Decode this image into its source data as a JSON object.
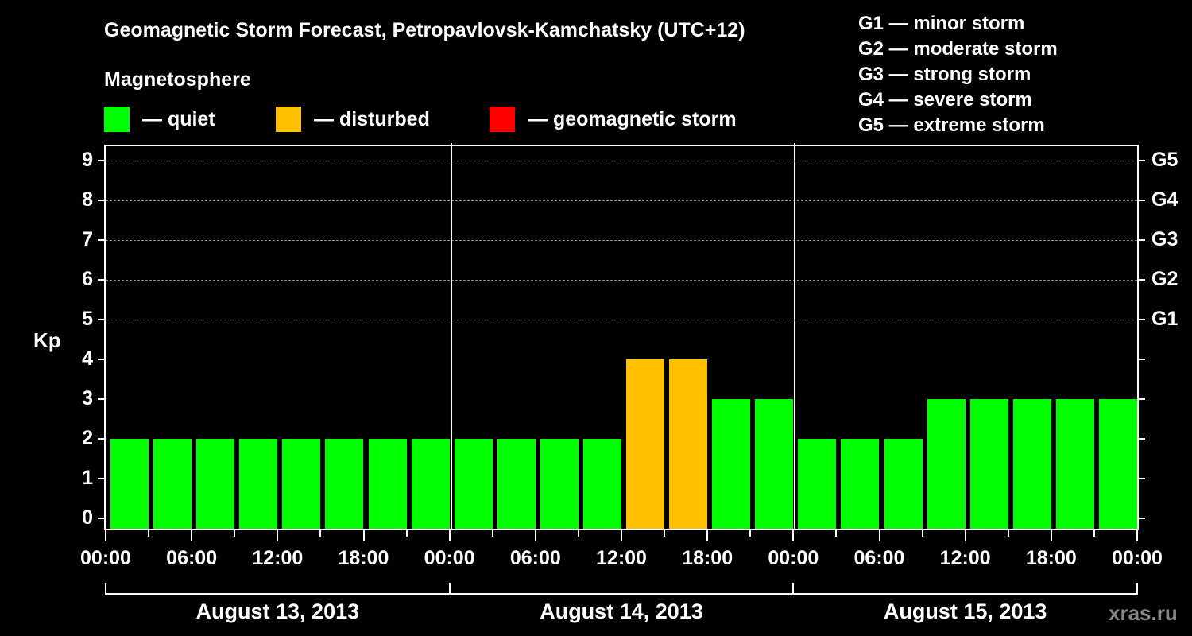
{
  "header": {
    "title": "Geomagnetic Storm Forecast, Petropavlovsk-Kamchatsky (UTC+12)",
    "subtitle": "Magnetosphere"
  },
  "legend": [
    {
      "label": "— quiet",
      "color": "#00ff00"
    },
    {
      "label": "— disturbed",
      "color": "#ffc000"
    },
    {
      "label": "— geomagnetic storm",
      "color": "#ff0000"
    }
  ],
  "g_scale": [
    "G1 — minor storm",
    "G2 — moderate storm",
    "G3 — strong storm",
    "G4 — severe storm",
    "G5 — extreme storm"
  ],
  "axes": {
    "ylabel": "Kp",
    "yticks": [
      "0",
      "1",
      "2",
      "3",
      "4",
      "5",
      "6",
      "7",
      "8",
      "9"
    ],
    "right_ticks": [
      {
        "kp": 5,
        "label": "G1"
      },
      {
        "kp": 6,
        "label": "G2"
      },
      {
        "kp": 7,
        "label": "G3"
      },
      {
        "kp": 8,
        "label": "G4"
      },
      {
        "kp": 9,
        "label": "G5"
      }
    ],
    "xticks": [
      "00:00",
      "06:00",
      "12:00",
      "18:00",
      "00:00",
      "06:00",
      "12:00",
      "18:00",
      "00:00",
      "06:00",
      "12:00",
      "18:00",
      "00:00"
    ],
    "dates": [
      "August 13, 2013",
      "August 14, 2013",
      "August 15, 2013"
    ]
  },
  "watermark": "xras.ru",
  "chart_data": {
    "type": "bar",
    "title": "Geomagnetic Storm Forecast, Petropavlovsk-Kamchatsky (UTC+12)",
    "subtitle": "Magnetosphere",
    "xlabel": "",
    "ylabel": "Kp",
    "ylim": [
      0,
      9
    ],
    "grid": "dashed horizontal lines at Kp 5-9",
    "interval_hours": 3,
    "categories": [
      "Aug 13 00:00",
      "Aug 13 03:00",
      "Aug 13 06:00",
      "Aug 13 09:00",
      "Aug 13 12:00",
      "Aug 13 15:00",
      "Aug 13 18:00",
      "Aug 13 21:00",
      "Aug 14 00:00",
      "Aug 14 03:00",
      "Aug 14 06:00",
      "Aug 14 09:00",
      "Aug 14 12:00",
      "Aug 14 15:00",
      "Aug 14 18:00",
      "Aug 14 21:00",
      "Aug 15 00:00",
      "Aug 15 03:00",
      "Aug 15 06:00",
      "Aug 15 09:00",
      "Aug 15 12:00",
      "Aug 15 15:00",
      "Aug 15 18:00",
      "Aug 15 21:00"
    ],
    "values": [
      2,
      2,
      2,
      2,
      2,
      2,
      2,
      2,
      2,
      2,
      2,
      2,
      4,
      4,
      3,
      3,
      2,
      2,
      2,
      3,
      3,
      3,
      3,
      3
    ],
    "status": [
      "quiet",
      "quiet",
      "quiet",
      "quiet",
      "quiet",
      "quiet",
      "quiet",
      "quiet",
      "quiet",
      "quiet",
      "quiet",
      "quiet",
      "disturbed",
      "disturbed",
      "quiet",
      "quiet",
      "quiet",
      "quiet",
      "quiet",
      "quiet",
      "quiet",
      "quiet",
      "quiet",
      "quiet"
    ],
    "status_colors": {
      "quiet": "#00ff00",
      "disturbed": "#ffc000",
      "storm": "#ff0000"
    },
    "legend": [
      "quiet",
      "disturbed",
      "geomagnetic storm"
    ],
    "right_axis": {
      "5": "G1",
      "6": "G2",
      "7": "G3",
      "8": "G4",
      "9": "G5"
    }
  }
}
